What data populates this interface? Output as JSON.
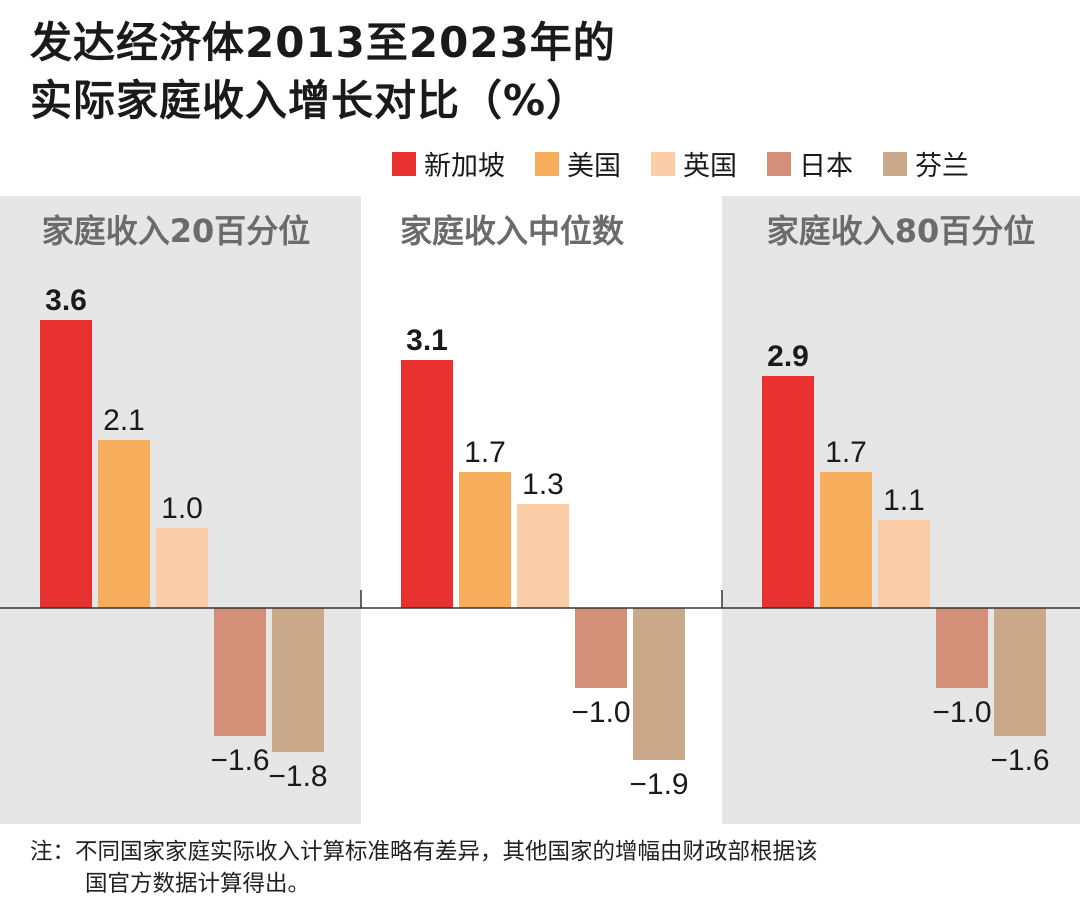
{
  "title_line1": "发达经济体2013至2023年的",
  "title_line2": "实际家庭收入增长对比（%）",
  "legend": [
    {
      "name": "新加坡",
      "color": "#e8312f"
    },
    {
      "name": "美国",
      "color": "#f7ae5c"
    },
    {
      "name": "英国",
      "color": "#fbcda8"
    },
    {
      "name": "日本",
      "color": "#d48f78"
    },
    {
      "name": "芬兰",
      "color": "#c9a989"
    }
  ],
  "chart_data": {
    "type": "bar",
    "panel_colors": [
      "#e6e6e6",
      "#ffffff",
      "#e6e6e6"
    ],
    "categories": [
      "家庭收入20百分位",
      "家庭收入中位数",
      "家庭收入80百分位"
    ],
    "series": [
      {
        "name": "新加坡",
        "values": [
          3.6,
          3.1,
          2.9
        ]
      },
      {
        "name": "美国",
        "values": [
          2.1,
          1.7,
          1.7
        ]
      },
      {
        "name": "英国",
        "values": [
          1.0,
          1.3,
          1.1
        ]
      },
      {
        "name": "日本",
        "values": [
          -1.6,
          -1.0,
          -1.0
        ]
      },
      {
        "name": "芬兰",
        "values": [
          -1.8,
          -1.9,
          -1.6
        ]
      }
    ],
    "data_labels": [
      [
        "3.6",
        "2.1",
        "1.0",
        "−1.6",
        "−1.8"
      ],
      [
        "3.1",
        "1.7",
        "1.3",
        "−1.0",
        "−1.9"
      ],
      [
        "2.9",
        "1.7",
        "1.1",
        "−1.0",
        "−1.6"
      ]
    ],
    "ylim": [
      -2.6,
      4.6
    ],
    "grid": false,
    "legend_position": "top-right"
  },
  "note_line1": "注：不同国家家庭实际收入计算标准略有差异，其他国家的增幅由财政部根据该",
  "note_line2": "国官方数据计算得出。"
}
